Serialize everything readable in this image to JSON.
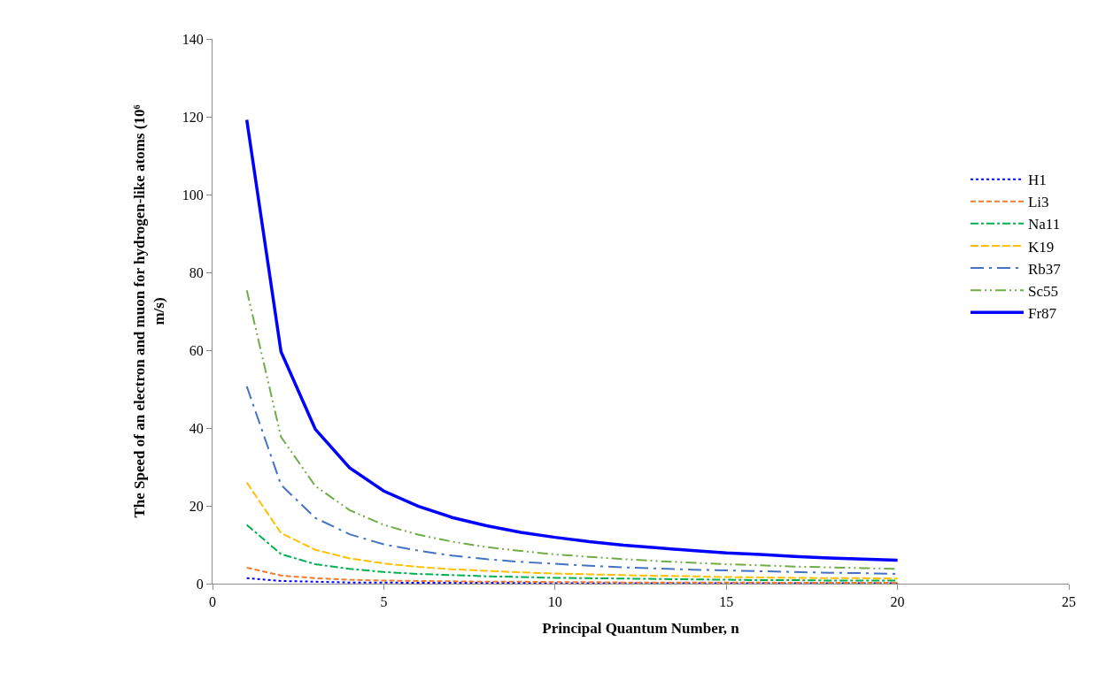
{
  "chart_data": {
    "type": "line",
    "xlabel": "Principal Quantum Number, n",
    "ylabel": "The Speed of an electron and muon for hydrogen-like atoms (10⁶ m/s)",
    "x": [
      1,
      2,
      3,
      4,
      5,
      6,
      7,
      8,
      9,
      10,
      11,
      12,
      13,
      14,
      15,
      16,
      17,
      18,
      19,
      20
    ],
    "xlim": [
      0,
      25
    ],
    "xticks": [
      0,
      5,
      10,
      15,
      20,
      25
    ],
    "ylim": [
      0,
      140
    ],
    "yticks": [
      0,
      20,
      40,
      60,
      80,
      100,
      120,
      140
    ],
    "legend": "right",
    "marker": "none",
    "series": [
      {
        "name": "H1",
        "color": "#0000ff",
        "line_style": "dotted",
        "values": [
          1.4,
          0.7,
          0.5,
          0.3,
          0.3,
          0.2,
          0.2,
          0.2,
          0.2,
          0.1,
          0.1,
          0.1,
          0.1,
          0.1,
          0.1,
          0.1,
          0.1,
          0.1,
          0.1,
          0.1
        ]
      },
      {
        "name": "Li3",
        "color": "#ed7d31",
        "line_style": "dashed",
        "values": [
          4.1,
          2.1,
          1.4,
          1.0,
          0.8,
          0.7,
          0.6,
          0.5,
          0.5,
          0.4,
          0.4,
          0.3,
          0.3,
          0.3,
          0.3,
          0.3,
          0.2,
          0.2,
          0.2,
          0.2
        ]
      },
      {
        "name": "Na11",
        "color": "#00b050",
        "line_style": "dashdot",
        "values": [
          15.1,
          7.6,
          5.0,
          3.8,
          3.0,
          2.5,
          2.2,
          1.9,
          1.7,
          1.5,
          1.4,
          1.3,
          1.2,
          1.1,
          1.0,
          0.9,
          0.9,
          0.8,
          0.8,
          0.8
        ]
      },
      {
        "name": "K19",
        "color": "#ffc000",
        "line_style": "longdash",
        "values": [
          26.0,
          13.0,
          8.7,
          6.5,
          5.2,
          4.3,
          3.7,
          3.3,
          2.9,
          2.6,
          2.4,
          2.2,
          2.0,
          1.9,
          1.7,
          1.6,
          1.5,
          1.4,
          1.4,
          1.3
        ]
      },
      {
        "name": "Rb37",
        "color": "#4472c4",
        "line_style": "longdashdot",
        "values": [
          50.7,
          25.4,
          16.9,
          12.7,
          10.1,
          8.5,
          7.2,
          6.3,
          5.6,
          5.1,
          4.6,
          4.2,
          3.9,
          3.6,
          3.4,
          3.2,
          3.0,
          2.8,
          2.7,
          2.5
        ]
      },
      {
        "name": "Sc55",
        "color": "#70ad47",
        "line_style": "longdashdotdot",
        "values": [
          75.4,
          37.7,
          25.1,
          18.9,
          15.1,
          12.6,
          10.8,
          9.4,
          8.4,
          7.5,
          6.9,
          6.3,
          5.8,
          5.4,
          5.0,
          4.7,
          4.4,
          4.2,
          4.0,
          3.8
        ]
      },
      {
        "name": "Fr87",
        "color": "#0000ff",
        "line_style": "solid",
        "values": [
          119.2,
          59.6,
          39.7,
          29.8,
          23.8,
          19.9,
          17.0,
          14.9,
          13.2,
          11.9,
          10.8,
          9.9,
          9.2,
          8.5,
          7.9,
          7.5,
          7.0,
          6.6,
          6.3,
          6.0
        ]
      }
    ]
  }
}
